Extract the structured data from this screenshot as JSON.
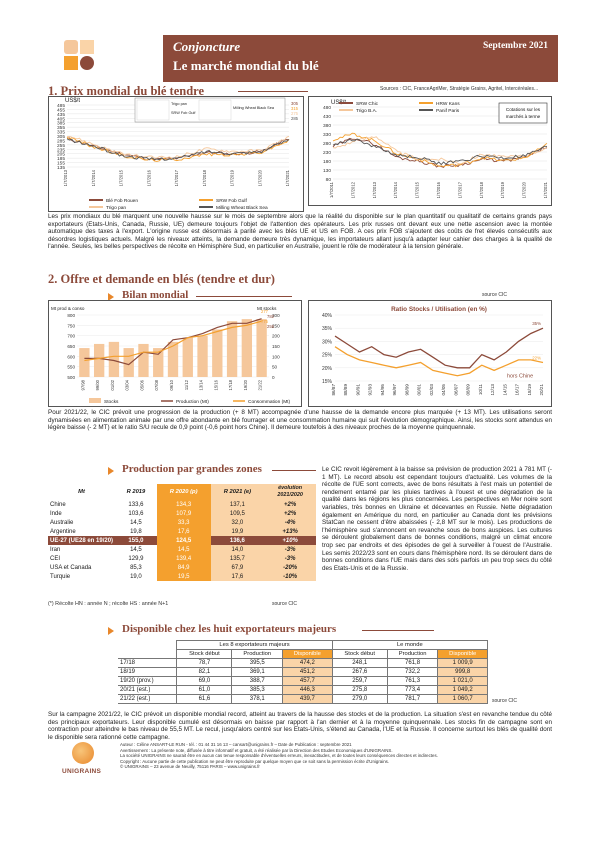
{
  "header": {
    "series": "Conjoncture",
    "title": "Le marché mondial du blé",
    "date": "Septembre 2021"
  },
  "colors": {
    "brand": "#8c4a3a",
    "orange": "#f4a02e",
    "light_orange": "#fad4a8",
    "peach": "#f5c79b"
  },
  "section1": {
    "title": "1. Prix mondial du blé tendre",
    "source": "Sources : CIC, FranceAgriMer, Stratégie Grains, Agritel, Intercéréales...",
    "para": "Les prix mondiaux du blé marquent une nouvelle hausse sur le mois de septembre alors que la réalité du disponible sur le plan quantitatif ou qualitatif de certains grands pays exportateurs (Etats-Unis, Canada, Russie, UE) demeure toujours l'objet de l'attention des opérateurs. Les prix russes ont devant eux une nette ascension avec la montée automatique des taxes à l'export. L'origine russe est désormais à parité avec les blés UE et US en FOB. A ces prix FOB s'ajoutent des coûts de fret élevés consécutifs aux désordres logistiques actuels. Malgré les niveaux atteints, la demande demeure très dynamique, les importateurs allant jusqu'à adapter leur cahier des charges à la qualité de l'année. Seules, les belles perspectives de récolte en Hémisphère Sud, en particulier en Australie, jouent le rôle de modérateur à la tension générale."
  },
  "chart_data": [
    {
      "type": "line",
      "ylabel": "US$/t",
      "ylim": [
        125,
        485
      ],
      "yticks": [
        "485",
        "455",
        "435",
        "405",
        "385",
        "355",
        "335",
        "305",
        "285",
        "255",
        "235",
        "205",
        "185",
        "155",
        "135"
      ],
      "x": [
        "1/7/2013",
        "1/7/2014",
        "1/7/2015",
        "1/7/2016",
        "1/7/2017",
        "1/7/2018",
        "1/7/2019",
        "1/7/2020",
        "1/7/2021"
      ],
      "series": [
        {
          "name": "Blé Fob Rouen",
          "color": "#8c4a3a",
          "values": [
            290,
            245,
            200,
            170,
            175,
            210,
            200,
            215,
            290
          ]
        },
        {
          "name": "SRW Fob Gulf",
          "color": "#f4a02e",
          "values": [
            300,
            240,
            190,
            165,
            170,
            200,
            195,
            210,
            280
          ]
        },
        {
          "name": "Trigo pan",
          "color": "#f5c79b",
          "values": [
            310,
            255,
            200,
            180,
            185,
            230,
            215,
            220,
            300
          ]
        },
        {
          "name": "Milling Wheat Black Sea",
          "color": "#555555",
          "values": [
            285,
            245,
            190,
            170,
            175,
            215,
            205,
            215,
            285
          ]
        }
      ],
      "end_labels": [
        "305",
        "315",
        "275",
        "285"
      ],
      "inset_legend": [
        "Trigo pan",
        "SRW Fob Gulf",
        "Milling Wheat Black Sea"
      ]
    },
    {
      "type": "line",
      "ylabel": "US$/t",
      "ylim": [
        80,
        480
      ],
      "yticks": [
        "480",
        "430",
        "380",
        "330",
        "280",
        "230",
        "180",
        "130",
        "80"
      ],
      "x": [
        "1/7/2011",
        "1/7/2012",
        "1/7/2013",
        "1/7/2014",
        "1/7/2015",
        "1/7/2016",
        "1/7/2017",
        "1/7/2018",
        "1/7/2019",
        "1/7/2020",
        "1/7/2021"
      ],
      "series": [
        {
          "name": "SRW Chic",
          "color": "#8c4a3a",
          "values": [
            260,
            310,
            270,
            200,
            180,
            150,
            160,
            190,
            180,
            200,
            260
          ]
        },
        {
          "name": "HRW Kans",
          "color": "#f4a02e",
          "values": [
            300,
            330,
            290,
            220,
            190,
            150,
            160,
            200,
            180,
            200,
            270
          ]
        },
        {
          "name": "Trigo B.A.",
          "color": "#f5c79b",
          "values": [
            250,
            290,
            320,
            230,
            190,
            190,
            170,
            220,
            200,
            210,
            255
          ]
        },
        {
          "name": "Panif Paris",
          "color": "#555555",
          "values": [
            270,
            300,
            260,
            210,
            200,
            165,
            180,
            210,
            195,
            210,
            260
          ]
        }
      ],
      "note": "Cotations sur les marchés à terme"
    },
    {
      "type": "bar",
      "title": "Bilan mondial",
      "ylabel": "Mt prod & conso",
      "y2label": "Mt stocks",
      "ylim": [
        500,
        800
      ],
      "y2lim": [
        0,
        300
      ],
      "yticks": [
        "800",
        "750",
        "700",
        "650",
        "600",
        "550",
        "500"
      ],
      "y2ticks": [
        "300",
        "250",
        "200",
        "150",
        "100",
        "50",
        "0"
      ],
      "categories": [
        "97/98",
        "99/00",
        "01/02",
        "03/04",
        "05/06",
        "07/08",
        "09/10",
        "11/12",
        "13/14",
        "15/16",
        "17/18",
        "19/20",
        "21/22"
      ],
      "series": [
        {
          "name": "Stocks",
          "color": "#f5c79b",
          "values": [
            140,
            160,
            170,
            140,
            160,
            140,
            170,
            190,
            200,
            230,
            270,
            280,
            280
          ]
        },
        {
          "name": "Production (Mt)",
          "color": "#8c4a3a",
          "values": [
            590,
            590,
            580,
            560,
            620,
            610,
            680,
            690,
            710,
            740,
            760,
            760,
            782
          ]
        },
        {
          "name": "Consommation (Mt)",
          "color": "#f4a02e",
          "values": [
            580,
            590,
            600,
            600,
            620,
            620,
            650,
            690,
            700,
            720,
            740,
            750,
            770
          ]
        }
      ],
      "point_labels": [
        "277",
        "782",
        "775",
        "255"
      ]
    },
    {
      "type": "line",
      "title": "Ratio Stocks / Utilisation (en %)",
      "ylim": [
        15,
        40
      ],
      "yticks": [
        "40%",
        "35%",
        "30%",
        "25%",
        "20%",
        "15%"
      ],
      "categories": [
        "86/87",
        "88/89",
        "90/91",
        "92/93",
        "94/95",
        "96/97",
        "98/99",
        "00/01",
        "02/03",
        "04/05",
        "06/07",
        "08/09",
        "10/11",
        "12/13",
        "14/15",
        "16/17",
        "18/19",
        "20/21"
      ],
      "series": [
        {
          "name": "monde",
          "color": "#8c4a3a",
          "values": [
            32,
            29,
            26,
            28,
            25,
            24,
            26,
            27,
            24,
            21,
            20,
            20,
            25,
            23,
            26,
            30,
            33,
            35
          ]
        },
        {
          "name": "hors Chine",
          "color": "#f4a02e",
          "values": [
            28,
            25,
            23,
            22,
            21,
            20,
            21,
            22,
            19,
            18,
            17,
            18,
            21,
            19,
            21,
            23,
            23,
            22
          ]
        }
      ],
      "end_labels": [
        "35%",
        "22%"
      ],
      "note": "hors Chine"
    }
  ],
  "section2": {
    "title": "2. Offre et demande en blés (tendre et dur)",
    "bilan_title": "Bilan mondial",
    "source": "source CIC",
    "para": "Pour 2021/22, le CIC prévoit une progression de la production (+ 8 MT) accompagnée d'une hausse de la demande encore plus marquée (+ 13 MT). Les utilisations seront dynamisées en alimentation animale par une offre abondante en blé fourrager et une consommation humaine qui suit l'évolution démographique. Ainsi, les stocks sont attendus en légère baisse (- 2 MT) et le ratio S/U recule de 0,9 point (-0,6 point hors Chine). Il demeure toutefois à des niveaux proches de la moyenne quinquennale."
  },
  "production": {
    "title": "Production par grandes zones",
    "headers": [
      "Mt",
      "R 2019",
      "R 2020 (p)",
      "R 2021 (e)",
      "évolution 2021/2020"
    ],
    "rows": [
      [
        "Chine",
        "133,6",
        "134,3",
        "137,1",
        "+2%"
      ],
      [
        "Inde",
        "103,6",
        "107,9",
        "109,5",
        "+2%"
      ],
      [
        "Australie",
        "14,5",
        "33,3",
        "32,0",
        "-4%"
      ],
      [
        "Argentine",
        "19,8",
        "17,6",
        "19,9",
        "+13%"
      ],
      [
        "UE-27 (UE28 en 19/20)",
        "155,0",
        "124,5",
        "136,6",
        "+10%"
      ],
      [
        "Iran",
        "14,5",
        "14,5",
        "14,0",
        "-3%"
      ],
      [
        "CEI",
        "129,9",
        "139,4",
        "135,7",
        "-3%"
      ],
      [
        "USA et Canada",
        "85,3",
        "84,9",
        "67,9",
        "-20%"
      ],
      [
        "Turquie",
        "19,0",
        "19,5",
        "17,6",
        "-10%"
      ]
    ],
    "note": "(*) Récolte HN : année N ; récolte HS : année N+1",
    "source": "source CIC",
    "para": "Le CIC revoit légèrement à la baisse sa prévision de production 2021 à 781 MT (- 1 MT). Le record absolu est cependant toujours d'actualité. Les volumes de la récolte de l'UE sont corrects, avec de bons résultats à l'est mais un potentiel de rendement entamé par les pluies tardives à l'ouest et une dégradation de la qualité dans les régions les plus concernées. Les perspectives en Mer noire sont variables, très bonnes en Ukraine et décevantes en Russie. Nette dégradation également en Amérique du nord, en particulier au Canada dont les prévisions StatCan ne cessent d'être abaissées (- 2,8 MT sur le mois). Les productions de l'hémisphère sud s'annoncent en revanche sous de bons auspices. Les cultures se déroulent globalement dans de bonnes conditions, malgré un climat encore trop sec par endroits et des épisodes de gel à surveiller à l'ouest de l'Australie. Les semis 2022/23 sont en cours dans l'hémisphère nord. Ils se déroulent dans de bonnes conditions dans l'UE mais dans des sols parfois un peu trop secs du côté des Etats-Unis et de la Russie."
  },
  "disponible": {
    "title": "Disponible chez les huit exportateurs majeurs",
    "group_headers": [
      "Les 8 exportateurs majeurs",
      "Le monde"
    ],
    "col_headers": [
      "Stock début",
      "Production",
      "Disponible",
      "Stock début",
      "Production",
      "Disponible"
    ],
    "rows": [
      [
        "17/18",
        "78,7",
        "395,5",
        "474,2",
        "248,1",
        "761,8",
        "1 009,9"
      ],
      [
        "18/19",
        "82,1",
        "369,1",
        "451,2",
        "267,6",
        "732,2",
        "999,8"
      ],
      [
        "19/20 (prov.)",
        "69,0",
        "388,7",
        "457,7",
        "259,7",
        "761,3",
        "1 021,0"
      ],
      [
        "20/21 (est.)",
        "61,0",
        "385,3",
        "446,3",
        "275,8",
        "773,4",
        "1 049,2"
      ],
      [
        "21/22 (est.)",
        "61,6",
        "378,1",
        "439,7",
        "279,0",
        "781,7",
        "1 060,7"
      ]
    ],
    "source": "source CIC",
    "para": "Sur la campagne 2021/22, le CIC prévoit un disponible mondial record, atteint au travers de la hausse des stocks et de la production. La situation s'est en revanche tendue du côté des principaux exportateurs. Leur disponible cumulé est désormais en baisse par rapport à l'an dernier et à la moyenne quinquennale. Les stocks fin de campagne sont en contraction pour atteindre le bas niveau de 55,5 MT. Le recul, jusqu'alors centré sur les Etats-Unis, s'étend au Canada, l'UE et la Russie. Il concerne surtout les blés de qualité dont le disponible sera rationné cette campagne."
  },
  "footer": {
    "logo": "UNIGRAINS",
    "lines": [
      "Auteur : Céline ANSART-LE RUN - tél. : 01 44 31 16 13 – cansart@unigrains.fr – Date de Publication : septembre 2021",
      "Avertissement : La présente note, diffusée à titre informatif et gratuit, a été réalisée par la Direction des Etudes Economiques d'UNIGRAINS.",
      "La société UNIGRAINS ne saurait être en aucun cas tenue responsable d'éventuelles erreurs, inexactitudes, et de toutes leurs conséquences directes et indirectes.",
      "Copyright : Aucune partie de cette publication ne peut être reproduite par quelque moyen que ce soit sans la permission écrite d'Unigrains.",
      "© UNIGRAINS – 23 avenue de Neuilly, 75116 PARIS – www.unigrains.fr"
    ]
  }
}
